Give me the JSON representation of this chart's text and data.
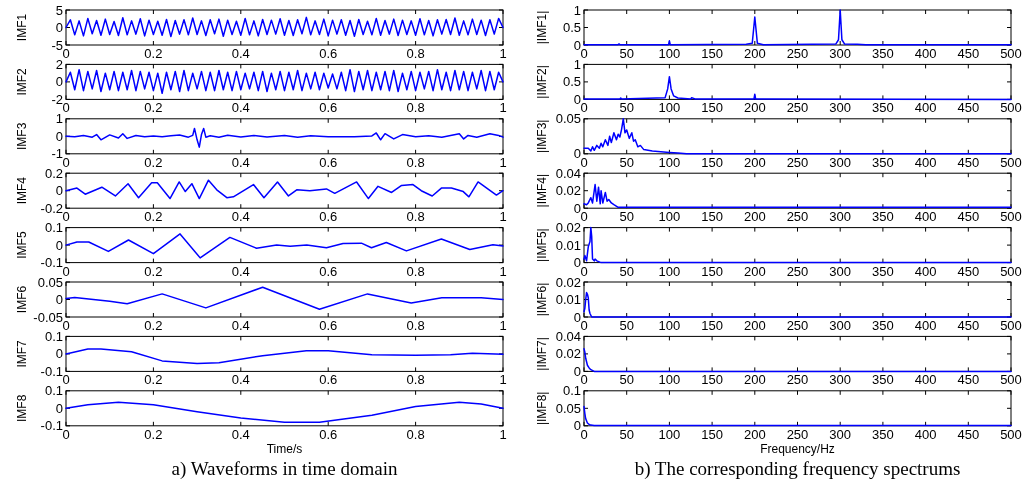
{
  "chart_data": [
    {
      "type": "line",
      "ylabel": "IMF1",
      "xlim": [
        0,
        1
      ],
      "xticks": [
        0,
        0.2,
        0.4,
        0.6,
        0.8,
        1
      ],
      "ylim": [
        -5,
        5
      ],
      "yticks": [
        -5,
        0,
        5
      ],
      "series": [
        {
          "color": "#0000ff",
          "x": [
            0,
            0.01,
            0.02,
            0.03,
            0.04,
            0.05,
            0.06,
            0.07,
            0.08,
            0.09,
            0.1,
            0.11,
            0.12,
            0.13,
            0.14,
            0.15,
            0.16,
            0.17,
            0.18,
            0.19,
            0.2,
            0.21,
            0.22,
            0.23,
            0.24,
            0.25,
            0.26,
            0.27,
            0.28,
            0.29,
            0.3,
            0.31,
            0.32,
            0.33,
            0.34,
            0.35,
            0.36,
            0.37,
            0.38,
            0.39,
            0.4,
            0.41,
            0.42,
            0.43,
            0.44,
            0.45,
            0.46,
            0.47,
            0.48,
            0.49,
            0.5,
            0.51,
            0.52,
            0.53,
            0.54,
            0.55,
            0.56,
            0.57,
            0.58,
            0.59,
            0.6,
            0.61,
            0.62,
            0.63,
            0.64,
            0.65,
            0.66,
            0.67,
            0.68,
            0.69,
            0.7,
            0.71,
            0.72,
            0.73,
            0.74,
            0.75,
            0.76,
            0.77,
            0.78,
            0.79,
            0.8,
            0.81,
            0.82,
            0.83,
            0.84,
            0.85,
            0.86,
            0.87,
            0.88,
            0.89,
            0.9,
            0.91,
            0.92,
            0.93,
            0.94,
            0.95,
            0.96,
            0.97,
            0.98,
            0.99,
            1
          ],
          "values": [
            0,
            2.2,
            -2.1,
            1.9,
            -2.4,
            2.6,
            -1.8,
            2.0,
            -2.2,
            2.4,
            -2.0,
            1.7,
            -2.3,
            2.8,
            -2.1,
            1.9,
            -1.9,
            2.5,
            -2.4,
            2.1,
            -2.0,
            1.8,
            -2.2,
            2.3,
            -2.6,
            2.0,
            -1.9,
            2.2,
            -2.1,
            2.7,
            -2.0,
            1.9,
            -2.3,
            2.2,
            -1.8,
            2.4,
            -2.5,
            2.1,
            -2.0,
            1.8,
            -2.2,
            2.6,
            -2.1,
            1.9,
            -2.4,
            2.3,
            -2.0,
            2.1,
            -1.9,
            2.5,
            -2.2,
            2.0,
            -2.3,
            2.2,
            -1.8,
            2.9,
            -2.1,
            1.9,
            -2.0,
            2.4,
            -2.4,
            2.1,
            -1.9,
            2.2,
            -2.2,
            2.0,
            -2.5,
            2.3,
            -2.0,
            1.8,
            -2.1,
            2.6,
            -2.2,
            2.0,
            -1.9,
            2.4,
            -2.3,
            2.1,
            -2.0,
            1.9,
            -2.2,
            2.5,
            -2.1,
            2.0,
            -2.4,
            2.2,
            -1.9,
            2.3,
            -2.0,
            2.7,
            -2.2,
            1.9,
            -2.1,
            2.4,
            -2.0,
            2.1,
            -2.3,
            2.2,
            -1.9,
            2.6,
            0
          ]
        }
      ]
    },
    {
      "type": "line",
      "ylabel": "IMF2",
      "xlim": [
        0,
        1
      ],
      "xticks": [
        0,
        0.2,
        0.4,
        0.6,
        0.8,
        1
      ],
      "ylim": [
        -2,
        2
      ],
      "yticks": [
        -2,
        0,
        2
      ],
      "series": [
        {
          "color": "#0000ff",
          "x": [
            0,
            0.01,
            0.02,
            0.03,
            0.04,
            0.05,
            0.06,
            0.07,
            0.08,
            0.09,
            0.1,
            0.11,
            0.12,
            0.13,
            0.14,
            0.15,
            0.16,
            0.17,
            0.18,
            0.19,
            0.2,
            0.21,
            0.22,
            0.23,
            0.24,
            0.25,
            0.26,
            0.27,
            0.28,
            0.29,
            0.3,
            0.31,
            0.32,
            0.33,
            0.34,
            0.35,
            0.36,
            0.37,
            0.38,
            0.39,
            0.4,
            0.41,
            0.42,
            0.43,
            0.44,
            0.45,
            0.46,
            0.47,
            0.48,
            0.49,
            0.5,
            0.51,
            0.52,
            0.53,
            0.54,
            0.55,
            0.56,
            0.57,
            0.58,
            0.59,
            0.6,
            0.61,
            0.62,
            0.63,
            0.64,
            0.65,
            0.66,
            0.67,
            0.68,
            0.69,
            0.7,
            0.71,
            0.72,
            0.73,
            0.74,
            0.75,
            0.76,
            0.77,
            0.78,
            0.79,
            0.8,
            0.81,
            0.82,
            0.83,
            0.84,
            0.85,
            0.86,
            0.87,
            0.88,
            0.89,
            0.9,
            0.91,
            0.92,
            0.93,
            0.94,
            0.95,
            0.96,
            0.97,
            0.98,
            0.99,
            1
          ],
          "values": [
            0,
            1.1,
            -0.9,
            1.4,
            -1.0,
            1.2,
            -0.8,
            1.3,
            -1.1,
            1.0,
            -0.9,
            1.2,
            -1.0,
            1.1,
            -0.9,
            1.3,
            -1.0,
            1.2,
            -0.8,
            1.1,
            -1.0,
            1.0,
            -1.3,
            1.1,
            -0.9,
            1.2,
            -1.1,
            1.3,
            -1.0,
            1.0,
            -0.8,
            1.2,
            -1.0,
            1.1,
            -1.0,
            1.3,
            -0.9,
            1.1,
            -1.0,
            1.2,
            -0.9,
            1.0,
            -0.8,
            1.1,
            -1.0,
            1.2,
            -1.1,
            1.0,
            -0.9,
            1.2,
            -1.0,
            1.1,
            -0.9,
            1.3,
            -1.0,
            1.0,
            -0.8,
            1.1,
            -0.9,
            1.0,
            -0.7,
            0.9,
            -0.8,
            1.1,
            -1.0,
            1.4,
            -1.1,
            1.2,
            -0.9,
            1.3,
            -1.0,
            1.1,
            -0.9,
            1.2,
            -1.0,
            1.3,
            -1.1,
            1.0,
            -0.9,
            1.2,
            -1.0,
            1.1,
            -0.8,
            1.2,
            -1.0,
            1.4,
            -0.9,
            1.1,
            -1.0,
            1.3,
            -0.9,
            1.2,
            -1.0,
            1.1,
            -0.8,
            1.3,
            -1.0,
            1.2,
            -0.9,
            1.1,
            0
          ]
        }
      ]
    },
    {
      "type": "line",
      "ylabel": "IMF3",
      "xlim": [
        0,
        1
      ],
      "xticks": [
        0,
        0.2,
        0.4,
        0.6,
        0.8,
        1
      ],
      "ylim": [
        -1,
        1
      ],
      "yticks": [
        -1,
        0,
        1
      ],
      "series": [
        {
          "color": "#0000ff",
          "x": [
            0,
            0.02,
            0.04,
            0.06,
            0.07,
            0.08,
            0.1,
            0.12,
            0.13,
            0.14,
            0.16,
            0.18,
            0.2,
            0.22,
            0.24,
            0.26,
            0.28,
            0.29,
            0.294,
            0.3,
            0.305,
            0.31,
            0.315,
            0.32,
            0.33,
            0.35,
            0.37,
            0.4,
            0.43,
            0.46,
            0.5,
            0.53,
            0.56,
            0.6,
            0.63,
            0.66,
            0.7,
            0.71,
            0.72,
            0.73,
            0.75,
            0.77,
            0.8,
            0.83,
            0.86,
            0.9,
            0.91,
            0.92,
            0.94,
            0.97,
            0.99,
            1
          ],
          "values": [
            0,
            -0.03,
            0.04,
            -0.05,
            0.1,
            -0.2,
            0.08,
            -0.1,
            0.15,
            -0.12,
            0.05,
            -0.03,
            0.02,
            -0.02,
            0.03,
            0.08,
            -0.05,
            0.05,
            0.45,
            -0.2,
            -0.62,
            0.1,
            0.45,
            -0.05,
            0.03,
            -0.05,
            0.06,
            -0.04,
            0.05,
            -0.04,
            0.05,
            -0.06,
            0.03,
            -0.02,
            -0.02,
            -0.03,
            0.02,
            0.19,
            -0.2,
            0.15,
            -0.15,
            0.1,
            -0.02,
            0.03,
            -0.05,
            0.15,
            -0.15,
            0.05,
            -0.05,
            0.15,
            0.05,
            -0.05
          ]
        }
      ]
    },
    {
      "type": "line",
      "ylabel": "IMF4",
      "xlim": [
        0,
        1
      ],
      "xticks": [
        0,
        0.2,
        0.4,
        0.6,
        0.8,
        1
      ],
      "ylim": [
        -0.2,
        0.2
      ],
      "yticks": [
        -0.2,
        0,
        0.2
      ],
      "series": [
        {
          "color": "#0000ff",
          "x": [
            0,
            0.025,
            0.044,
            0.082,
            0.113,
            0.142,
            0.166,
            0.196,
            0.209,
            0.238,
            0.259,
            0.273,
            0.288,
            0.305,
            0.326,
            0.345,
            0.368,
            0.383,
            0.429,
            0.453,
            0.484,
            0.509,
            0.528,
            0.558,
            0.596,
            0.615,
            0.665,
            0.692,
            0.714,
            0.745,
            0.768,
            0.794,
            0.813,
            0.838,
            0.859,
            0.882,
            0.909,
            0.922,
            0.943,
            0.985,
            1
          ],
          "values": [
            0,
            0.03,
            -0.04,
            0.04,
            -0.06,
            0.08,
            -0.08,
            0.09,
            0.09,
            -0.09,
            0.1,
            -0.01,
            0.08,
            -0.09,
            0.12,
            0.01,
            -0.08,
            -0.07,
            0.07,
            -0.08,
            0.1,
            -0.06,
            0.01,
            0,
            0.02,
            -0.03,
            0.1,
            -0.09,
            0.05,
            -0.02,
            0.06,
            0.07,
            0,
            -0.06,
            0.03,
            0.03,
            -0.01,
            -0.07,
            0.1,
            -0.05,
            0
          ]
        }
      ]
    },
    {
      "type": "line",
      "ylabel": "IMF5",
      "xlim": [
        0,
        1
      ],
      "xticks": [
        0,
        0.2,
        0.4,
        0.6,
        0.8,
        1
      ],
      "ylim": [
        -0.1,
        0.1
      ],
      "yticks": [
        -0.1,
        0,
        0.1
      ],
      "series": [
        {
          "color": "#0000ff",
          "x": [
            0,
            0.025,
            0.052,
            0.097,
            0.143,
            0.2,
            0.261,
            0.307,
            0.375,
            0.436,
            0.482,
            0.513,
            0.551,
            0.596,
            0.634,
            0.676,
            0.699,
            0.733,
            0.779,
            0.859,
            0.924,
            0.977,
            1
          ],
          "values": [
            0,
            0.018,
            0.018,
            -0.036,
            0.029,
            -0.049,
            0.064,
            -0.073,
            0.044,
            -0.018,
            0,
            -0.007,
            0,
            -0.015,
            0.009,
            0.011,
            -0.015,
            0.015,
            -0.033,
            0.035,
            -0.025,
            0.002,
            -0.005
          ]
        }
      ]
    },
    {
      "type": "line",
      "ylabel": "IMF6",
      "xlim": [
        0,
        1
      ],
      "xticks": [
        0,
        0.2,
        0.4,
        0.6,
        0.8,
        1
      ],
      "ylim": [
        -0.05,
        0.05
      ],
      "yticks": [
        -0.05,
        0,
        0.05
      ],
      "series": [
        {
          "color": "#0000ff",
          "x": [
            0,
            0.02,
            0.1,
            0.14,
            0.22,
            0.32,
            0.45,
            0.58,
            0.69,
            0.79,
            0.86,
            0.95,
            1
          ],
          "values": [
            0.003,
            0.006,
            -0.005,
            -0.012,
            0.016,
            -0.024,
            0.035,
            -0.028,
            0.016,
            -0.01,
            0.005,
            0.005,
            0
          ]
        }
      ]
    },
    {
      "type": "line",
      "ylabel": "IMF7",
      "xlim": [
        0,
        1
      ],
      "xticks": [
        0,
        0.2,
        0.4,
        0.6,
        0.8,
        1
      ],
      "ylim": [
        -0.1,
        0.1
      ],
      "yticks": [
        -0.1,
        0,
        0.1
      ],
      "series": [
        {
          "color": "#0000ff",
          "x": [
            0,
            0.05,
            0.08,
            0.15,
            0.22,
            0.3,
            0.35,
            0.45,
            0.55,
            0.6,
            0.7,
            0.8,
            0.88,
            0.93,
            1
          ],
          "values": [
            0,
            0.028,
            0.028,
            0.012,
            -0.04,
            -0.055,
            -0.05,
            -0.01,
            0.018,
            0.018,
            -0.005,
            -0.008,
            -0.005,
            0.004,
            -0.002
          ]
        }
      ]
    },
    {
      "type": "line",
      "ylabel": "IMF8",
      "xlabel": "Time/s",
      "annotations": [
        "a) Waveforms in time domain"
      ],
      "xlim": [
        0,
        1
      ],
      "xticks": [
        0,
        0.2,
        0.4,
        0.6,
        0.8,
        1
      ],
      "ylim": [
        -0.1,
        0.1
      ],
      "yticks": [
        -0.1,
        0,
        0.1
      ],
      "series": [
        {
          "color": "#0000ff",
          "x": [
            0,
            0.05,
            0.12,
            0.2,
            0.3,
            0.4,
            0.5,
            0.58,
            0.7,
            0.8,
            0.9,
            0.95,
            1
          ],
          "values": [
            0,
            0.02,
            0.035,
            0.02,
            -0.02,
            -0.055,
            -0.08,
            -0.08,
            -0.04,
            0.01,
            0.035,
            0.025,
            0
          ]
        }
      ]
    },
    {
      "type": "line",
      "ylabel": "|IMF1|",
      "xlim": [
        0,
        500
      ],
      "xticks": [
        0,
        50,
        100,
        150,
        200,
        250,
        300,
        350,
        400,
        450,
        500
      ],
      "ylim": [
        0,
        1
      ],
      "yticks": [
        0,
        0.5,
        1
      ],
      "series": [
        {
          "color": "#0000ff",
          "x": [
            0,
            40,
            41,
            42,
            99,
            100,
            101,
            190,
            197,
            200,
            203,
            210,
            295,
            298,
            300,
            302,
            305,
            320,
            330,
            500
          ],
          "values": [
            0.01,
            0.01,
            0.03,
            0.01,
            0.01,
            0.12,
            0.01,
            0.02,
            0.05,
            0.8,
            0.05,
            0.01,
            0.03,
            0.15,
            1,
            0.15,
            0.03,
            0.02,
            0.01,
            0.01
          ]
        }
      ]
    },
    {
      "type": "line",
      "ylabel": "|IMF2|",
      "xlim": [
        0,
        500
      ],
      "xticks": [
        0,
        50,
        100,
        150,
        200,
        250,
        300,
        350,
        400,
        450,
        500
      ],
      "ylim": [
        0,
        1
      ],
      "yticks": [
        0,
        0.5,
        1
      ],
      "series": [
        {
          "color": "#0000ff",
          "x": [
            0,
            42,
            43,
            44,
            95,
            98,
            100,
            102,
            105,
            110,
            125,
            126,
            130,
            199,
            200,
            201,
            500
          ],
          "values": [
            0.01,
            0.01,
            0.04,
            0.01,
            0.05,
            0.3,
            0.65,
            0.3,
            0.1,
            0.04,
            0.01,
            0.05,
            0.01,
            0.01,
            0.15,
            0.01,
            0
          ]
        }
      ]
    },
    {
      "type": "line",
      "ylabel": "|IMF3|",
      "xlim": [
        0,
        500
      ],
      "xticks": [
        0,
        50,
        100,
        150,
        200,
        250,
        300,
        350,
        400,
        450,
        500
      ],
      "ylim": [
        0,
        0.05
      ],
      "yticks": [
        0,
        0.05
      ],
      "series": [
        {
          "color": "#0000ff",
          "x": [
            0,
            5,
            8,
            10,
            12,
            15,
            18,
            20,
            22,
            25,
            28,
            30,
            32,
            35,
            38,
            40,
            42,
            44,
            46,
            48,
            50,
            53,
            56,
            58,
            60,
            63,
            66,
            70,
            80,
            90,
            100,
            110,
            120,
            500
          ],
          "values": [
            0.008,
            0.008,
            0.004,
            0.01,
            0.005,
            0.012,
            0.008,
            0.015,
            0.01,
            0.02,
            0.012,
            0.025,
            0.016,
            0.03,
            0.02,
            0.028,
            0.024,
            0.035,
            0.05,
            0.03,
            0.034,
            0.022,
            0.03,
            0.018,
            0.02,
            0.01,
            0.012,
            0.006,
            0.004,
            0.003,
            0.002,
            0.001,
            0,
            0
          ]
        }
      ]
    },
    {
      "type": "line",
      "ylabel": "|IMF4|",
      "xlim": [
        0,
        500
      ],
      "xticks": [
        0,
        50,
        100,
        150,
        200,
        250,
        300,
        350,
        400,
        450,
        500
      ],
      "ylim": [
        0,
        0.04
      ],
      "yticks": [
        0,
        0.02,
        0.04
      ],
      "series": [
        {
          "color": "#0000ff",
          "x": [
            0,
            3,
            5,
            8,
            10,
            12,
            13,
            15,
            17,
            19,
            20,
            22,
            25,
            27,
            29,
            32,
            35,
            40,
            500
          ],
          "values": [
            0.005,
            0.004,
            0.006,
            0.012,
            0.006,
            0.02,
            0.027,
            0.008,
            0.024,
            0.005,
            0.02,
            0.006,
            0.018,
            0.008,
            0.01,
            0.006,
            0.004,
            0.001,
            0.001
          ]
        }
      ]
    },
    {
      "type": "line",
      "ylabel": "|IMF5|",
      "xlim": [
        0,
        500
      ],
      "xticks": [
        0,
        50,
        100,
        150,
        200,
        250,
        300,
        350,
        400,
        450,
        500
      ],
      "ylim": [
        0,
        0.02
      ],
      "yticks": [
        0,
        0.01,
        0.02
      ],
      "series": [
        {
          "color": "#0000ff",
          "x": [
            0,
            1,
            3,
            5,
            7,
            8,
            9,
            10,
            12,
            13,
            15,
            20,
            500
          ],
          "values": [
            0.002,
            0.004,
            0.001,
            0.009,
            0.012,
            0.02,
            0.015,
            0.002,
            0.001,
            0.002,
            0.001,
            0,
            0
          ]
        }
      ]
    },
    {
      "type": "line",
      "ylabel": "|IMF6|",
      "xlim": [
        0,
        500
      ],
      "xticks": [
        0,
        50,
        100,
        150,
        200,
        250,
        300,
        350,
        400,
        450,
        500
      ],
      "ylim": [
        0,
        0.02
      ],
      "yticks": [
        0,
        0.01,
        0.02
      ],
      "series": [
        {
          "color": "#0000ff",
          "x": [
            0,
            1,
            2,
            3,
            4,
            5,
            6,
            7,
            9,
            500
          ],
          "values": [
            0.003,
            0.005,
            0.01,
            0.014,
            0.013,
            0.011,
            0.004,
            0.002,
            0,
            0
          ]
        }
      ]
    },
    {
      "type": "line",
      "ylabel": "|IMF7|",
      "xlim": [
        0,
        500
      ],
      "xticks": [
        0,
        50,
        100,
        150,
        200,
        250,
        300,
        350,
        400,
        450,
        500
      ],
      "ylim": [
        0,
        0.04
      ],
      "yticks": [
        0,
        0.02,
        0.04
      ],
      "series": [
        {
          "color": "#0000ff",
          "x": [
            0,
            1,
            2,
            4,
            6,
            8,
            12,
            500
          ],
          "values": [
            0.026,
            0.022,
            0.015,
            0.007,
            0.004,
            0.002,
            0,
            0
          ]
        }
      ]
    },
    {
      "type": "line",
      "ylabel": "|IMF8|",
      "xlabel": "Frequency/Hz",
      "annotations": [
        "b) The corresponding frequency spectrums"
      ],
      "xlim": [
        0,
        500
      ],
      "xticks": [
        0,
        50,
        100,
        150,
        200,
        250,
        300,
        350,
        400,
        450,
        500
      ],
      "ylim": [
        0,
        0.1
      ],
      "yticks": [
        0,
        0.05,
        0.1
      ],
      "series": [
        {
          "color": "#0000ff",
          "x": [
            0,
            1,
            2,
            4,
            6,
            8,
            12,
            500
          ],
          "values": [
            0.055,
            0.035,
            0.02,
            0.008,
            0.004,
            0.002,
            0.001,
            0.001
          ]
        }
      ]
    }
  ]
}
